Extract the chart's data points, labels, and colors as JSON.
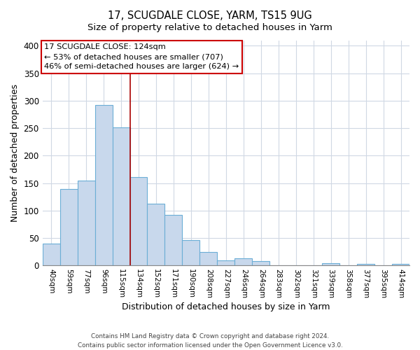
{
  "title": "17, SCUGDALE CLOSE, YARM, TS15 9UG",
  "subtitle": "Size of property relative to detached houses in Yarm",
  "xlabel": "Distribution of detached houses by size in Yarm",
  "ylabel": "Number of detached properties",
  "footer_line1": "Contains HM Land Registry data © Crown copyright and database right 2024.",
  "footer_line2": "Contains public sector information licensed under the Open Government Licence v3.0.",
  "bins": [
    "40sqm",
    "59sqm",
    "77sqm",
    "96sqm",
    "115sqm",
    "134sqm",
    "152sqm",
    "171sqm",
    "190sqm",
    "208sqm",
    "227sqm",
    "246sqm",
    "264sqm",
    "283sqm",
    "302sqm",
    "321sqm",
    "339sqm",
    "358sqm",
    "377sqm",
    "395sqm",
    "414sqm"
  ],
  "values": [
    40,
    139,
    155,
    292,
    251,
    161,
    113,
    92,
    46,
    25,
    10,
    13,
    8,
    0,
    0,
    0,
    5,
    0,
    3,
    0,
    3
  ],
  "bar_color": "#c8d8ec",
  "bar_edge_color": "#6baed6",
  "marker_color": "#aa0000",
  "annotation_title": "17 SCUGDALE CLOSE: 124sqm",
  "annotation_line1": "← 53% of detached houses are smaller (707)",
  "annotation_line2": "46% of semi-detached houses are larger (624) →",
  "annotation_box_color": "#ffffff",
  "annotation_box_edge": "#cc0000",
  "ylim": [
    0,
    410
  ],
  "yticks": [
    0,
    50,
    100,
    150,
    200,
    250,
    300,
    350,
    400
  ],
  "grid_color": "#d0d8e4",
  "title_fontsize": 10.5,
  "subtitle_fontsize": 9.5
}
